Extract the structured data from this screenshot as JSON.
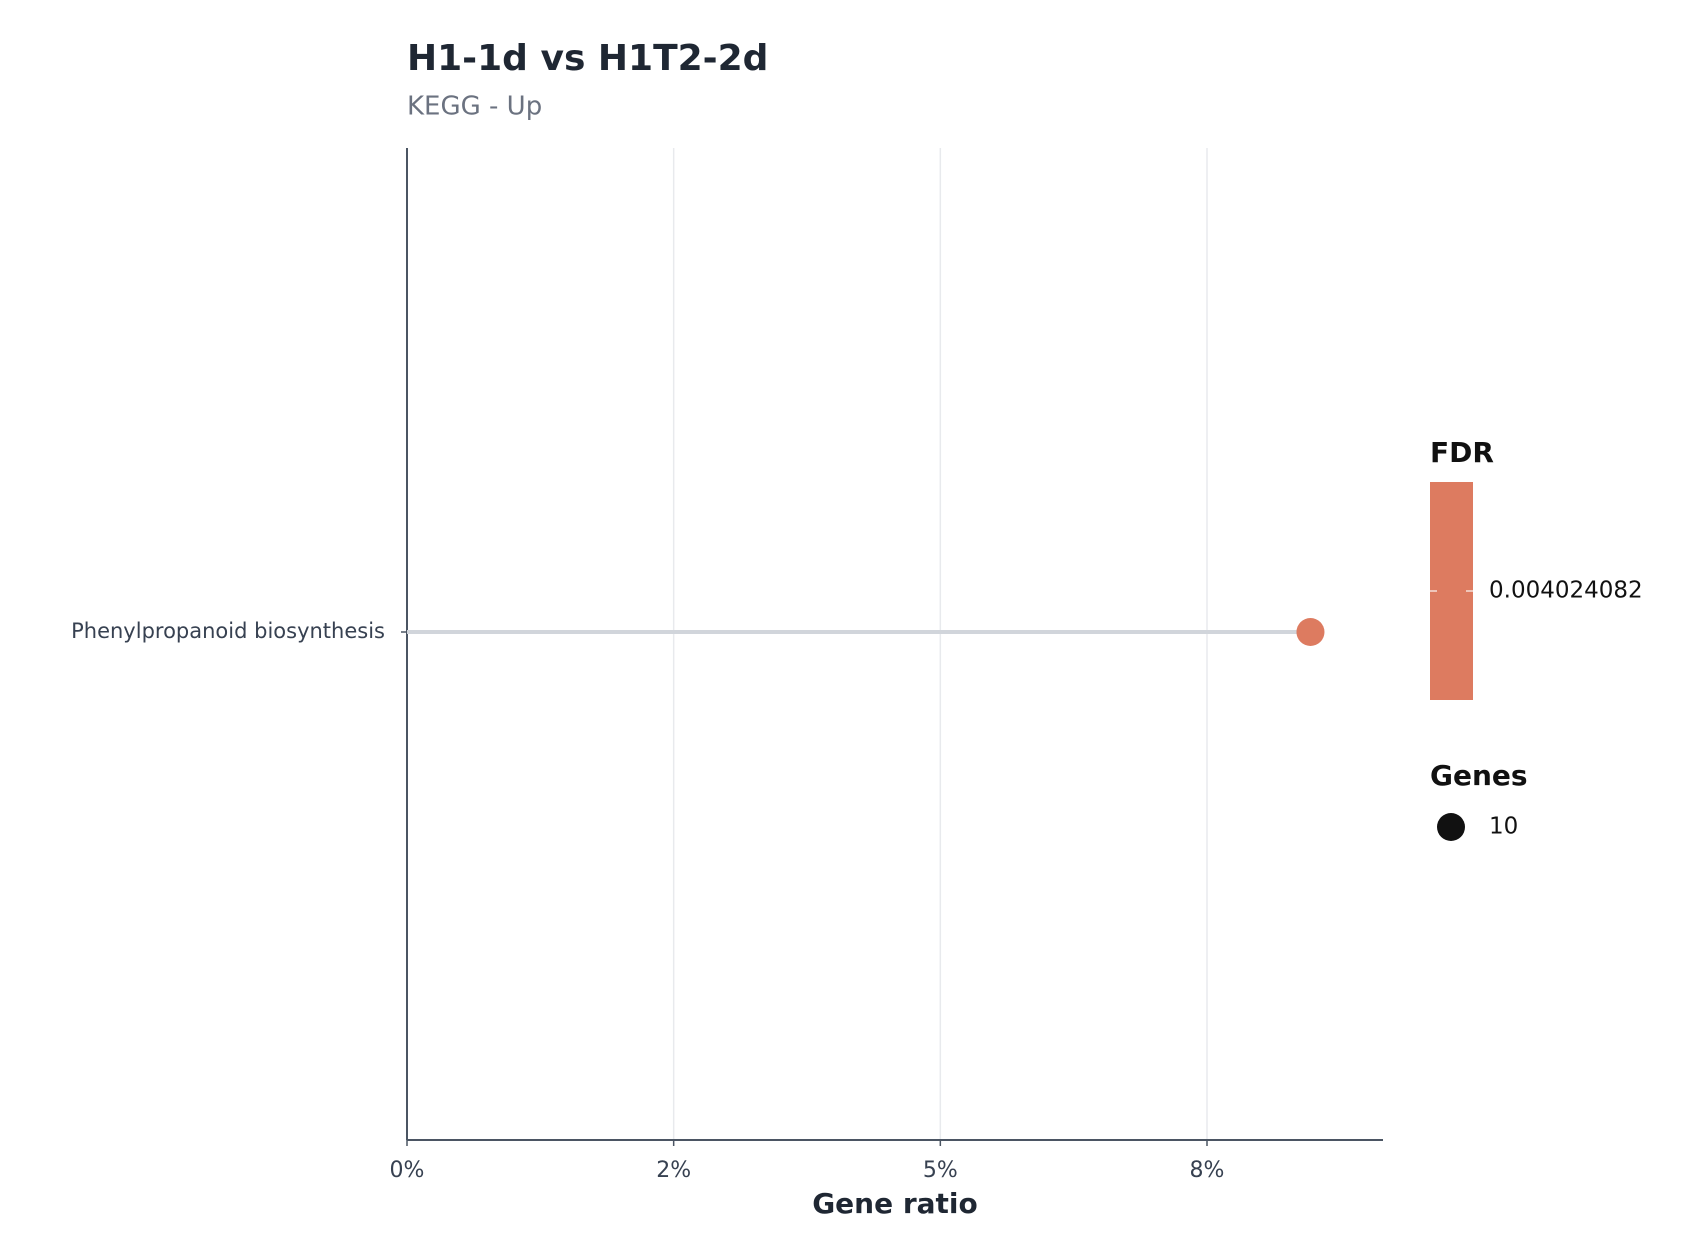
{
  "chart_data": {
    "type": "lollipop",
    "title": "H1-1d vs H1T2-2d",
    "subtitle": "KEGG - Up",
    "x_label": "Gene ratio",
    "categories": [
      "Phenylpropanoid biosynthesis"
    ],
    "values": [
      0.0847
    ],
    "sizes": [
      10
    ],
    "color": "#dd7b60",
    "xlim": [
      0,
      0.0915
    ],
    "xticks": [
      {
        "value": 0,
        "label": "0%"
      },
      {
        "value": 0.025,
        "label": "2%"
      },
      {
        "value": 0.05,
        "label": "5%"
      },
      {
        "value": 0.075,
        "label": "8%"
      }
    ],
    "grid": true,
    "color_legend": {
      "title": "FDR",
      "ticks": [
        0.004024082
      ]
    },
    "size_legend": {
      "title": "Genes",
      "values": [
        10
      ]
    }
  }
}
